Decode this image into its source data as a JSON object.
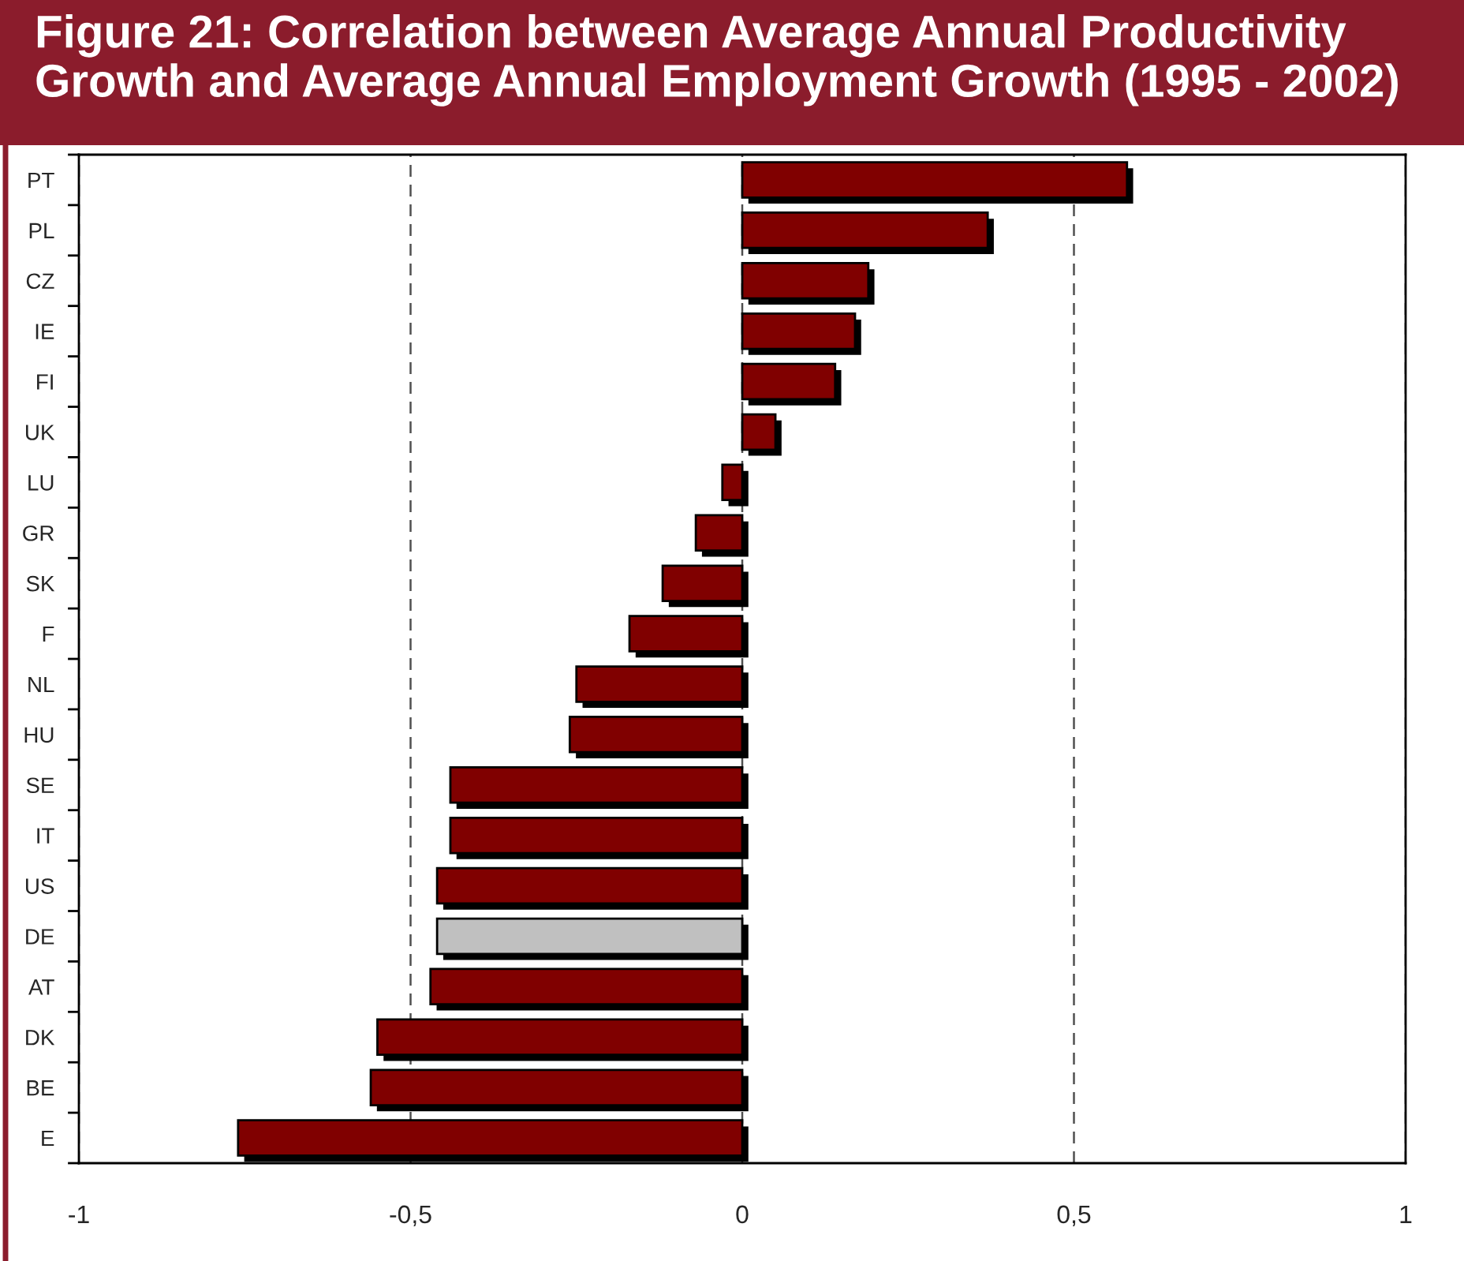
{
  "chart_data": {
    "type": "bar",
    "orientation": "horizontal",
    "title": "Figure 21: Correlation between Average Annual Productivity Growth and Average Annual Employment Growth (1995 - 2002)",
    "categories": [
      "PT",
      "PL",
      "CZ",
      "IE",
      "FI",
      "UK",
      "LU",
      "GR",
      "SK",
      "F",
      "NL",
      "HU",
      "SE",
      "IT",
      "US",
      "DE",
      "AT",
      "DK",
      "BE",
      "E"
    ],
    "values": [
      0.58,
      0.37,
      0.19,
      0.17,
      0.14,
      0.05,
      -0.03,
      -0.07,
      -0.12,
      -0.17,
      -0.25,
      -0.26,
      -0.44,
      -0.44,
      -0.46,
      -0.46,
      -0.47,
      -0.55,
      -0.56,
      -0.76
    ],
    "colors": [
      "#800000",
      "#800000",
      "#800000",
      "#800000",
      "#800000",
      "#800000",
      "#800000",
      "#800000",
      "#800000",
      "#800000",
      "#800000",
      "#800000",
      "#800000",
      "#800000",
      "#800000",
      "#c0c0c0",
      "#800000",
      "#800000",
      "#800000",
      "#800000"
    ],
    "xlim": [
      -1,
      1
    ],
    "xticks": [
      -1,
      {
        "value": -0.5,
        "label": "-0,5"
      },
      0,
      {
        "value": 0.5,
        "label": "0,5"
      },
      1
    ],
    "grid": "x",
    "legend": false
  }
}
